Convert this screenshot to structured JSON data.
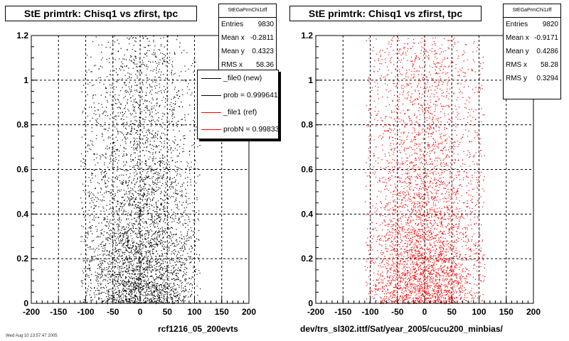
{
  "panels": [
    {
      "title": "StE primtrk: Chisq1 vs zfirst, tpc",
      "hist_name": "StEGaPrmChi1zff",
      "stats": [
        {
          "label": "Entries",
          "value": "9830"
        },
        {
          "label": "Mean x",
          "value": "-0.2811"
        },
        {
          "label": "Mean y",
          "value": "0.4323"
        },
        {
          "label": "RMS x",
          "value": "58.36"
        }
      ],
      "legend": [
        {
          "label": "_file0 (new)",
          "color": "#000000"
        },
        {
          "label": "prob = 0.999641",
          "color": "#000000"
        },
        {
          "label": "_file1 (ref)",
          "color": "#ff0000"
        },
        {
          "label": "probN = 0.99833",
          "color": "#ff0000"
        }
      ],
      "xlabel": "rcf1216_05_200evts",
      "marker_color": "#000000"
    },
    {
      "title": "StE primtrk: Chisq1 vs zfirst, tpc",
      "hist_name": "StEGaPrmChi1zff",
      "stats": [
        {
          "label": "Entries",
          "value": "9820"
        },
        {
          "label": "Mean x",
          "value": "-0.9171"
        },
        {
          "label": "Mean y",
          "value": "0.4286"
        },
        {
          "label": "RMS x",
          "value": "58.28"
        },
        {
          "label": "RMS y",
          "value": "0.3294"
        }
      ],
      "xlabel": "dev/trs_sl302.ittf/Sat/year_2005/cucu200_minbias/",
      "marker_color": "#ff0000"
    }
  ],
  "footer_text": "Wed Aug 10 13:57:47 2005",
  "chart_data": [
    {
      "type": "scatter",
      "title": "StE primtrk: Chisq1 vs zfirst, tpc",
      "xlabel": "rcf1216_05_200evts",
      "ylabel": "",
      "xlim": [
        -200,
        200
      ],
      "ylim": [
        0,
        1.2
      ],
      "x_ticks": [
        -200,
        -150,
        -100,
        -50,
        0,
        50,
        100,
        150,
        200
      ],
      "y_ticks": [
        0,
        0.2,
        0.4,
        0.6,
        0.8,
        1,
        1.2
      ],
      "grid": true,
      "series": [
        {
          "name": "_file0 (new)",
          "color": "#000000",
          "entries": 9830,
          "mean_x": -0.2811,
          "mean_y": 0.4323,
          "rms_x": 58.36
        }
      ]
    },
    {
      "type": "scatter",
      "title": "StE primtrk: Chisq1 vs zfirst, tpc",
      "xlabel": "dev/trs_sl302.ittf/Sat/year_2005/cucu200_minbias/",
      "ylabel": "",
      "xlim": [
        -200,
        200
      ],
      "ylim": [
        0,
        1.2
      ],
      "x_ticks": [
        -200,
        -150,
        -100,
        -50,
        0,
        50,
        100,
        150,
        200
      ],
      "y_ticks": [
        0,
        0.2,
        0.4,
        0.6,
        0.8,
        1,
        1.2
      ],
      "grid": true,
      "series": [
        {
          "name": "_file1 (ref)",
          "color": "#ff0000",
          "entries": 9820,
          "mean_x": -0.9171,
          "mean_y": 0.4286,
          "rms_x": 58.28,
          "rms_y": 0.3294
        }
      ]
    }
  ]
}
